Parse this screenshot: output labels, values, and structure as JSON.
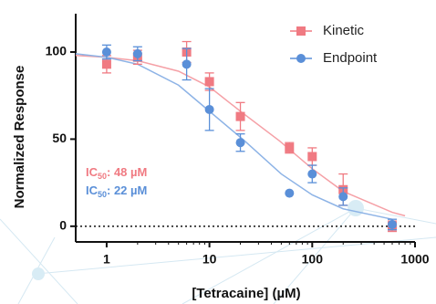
{
  "chart_data": {
    "type": "scatter",
    "x_label": "[Tetracaine] (µM)",
    "y_label": "Normalized Response",
    "log_x": true,
    "zero_line": true,
    "legend": "upper right",
    "x": [
      1,
      2,
      6,
      10,
      20,
      60,
      100,
      200,
      600
    ],
    "series": [
      {
        "name": "Kinetic",
        "color": "#f07a82",
        "marker": "square",
        "values": [
          93,
          97,
          100,
          83,
          63,
          45,
          40,
          21,
          0
        ],
        "errors": [
          5,
          4,
          6,
          5,
          8,
          3,
          5,
          9,
          3
        ]
      },
      {
        "name": "Endpoint",
        "color": "#5a8fd8",
        "marker": "circle",
        "values": [
          100,
          99,
          93,
          67,
          48,
          19,
          30,
          17,
          1
        ],
        "errors": [
          4,
          4,
          9,
          12,
          5,
          null,
          5,
          5,
          3
        ]
      }
    ],
    "fits": [
      {
        "color": "#f5a0a6",
        "x": [
          0.5,
          1,
          2,
          5,
          10,
          20,
          48,
          100,
          200,
          600,
          800
        ],
        "values": [
          98,
          97,
          95,
          89,
          80,
          66,
          49,
          33,
          20,
          8,
          6
        ]
      },
      {
        "color": "#8db3e6",
        "x": [
          0.5,
          1,
          2,
          5,
          10,
          22,
          50,
          100,
          200,
          600
        ],
        "values": [
          99,
          97,
          93,
          81,
          66,
          49,
          30,
          18,
          10,
          4
        ]
      }
    ],
    "annotations": [
      {
        "prefix": "IC",
        "sub": "50",
        "text": ": 48 µM",
        "color": "#f07a82"
      },
      {
        "prefix": "IC",
        "sub": "50",
        "text": ": 22 µM",
        "color": "#5a8fd8"
      }
    ],
    "xlim": [
      0.5,
      1000
    ],
    "ylim": [
      -9,
      122
    ],
    "xticks": [
      1,
      10,
      100,
      1000
    ],
    "yticks": [
      0,
      50,
      100
    ]
  }
}
